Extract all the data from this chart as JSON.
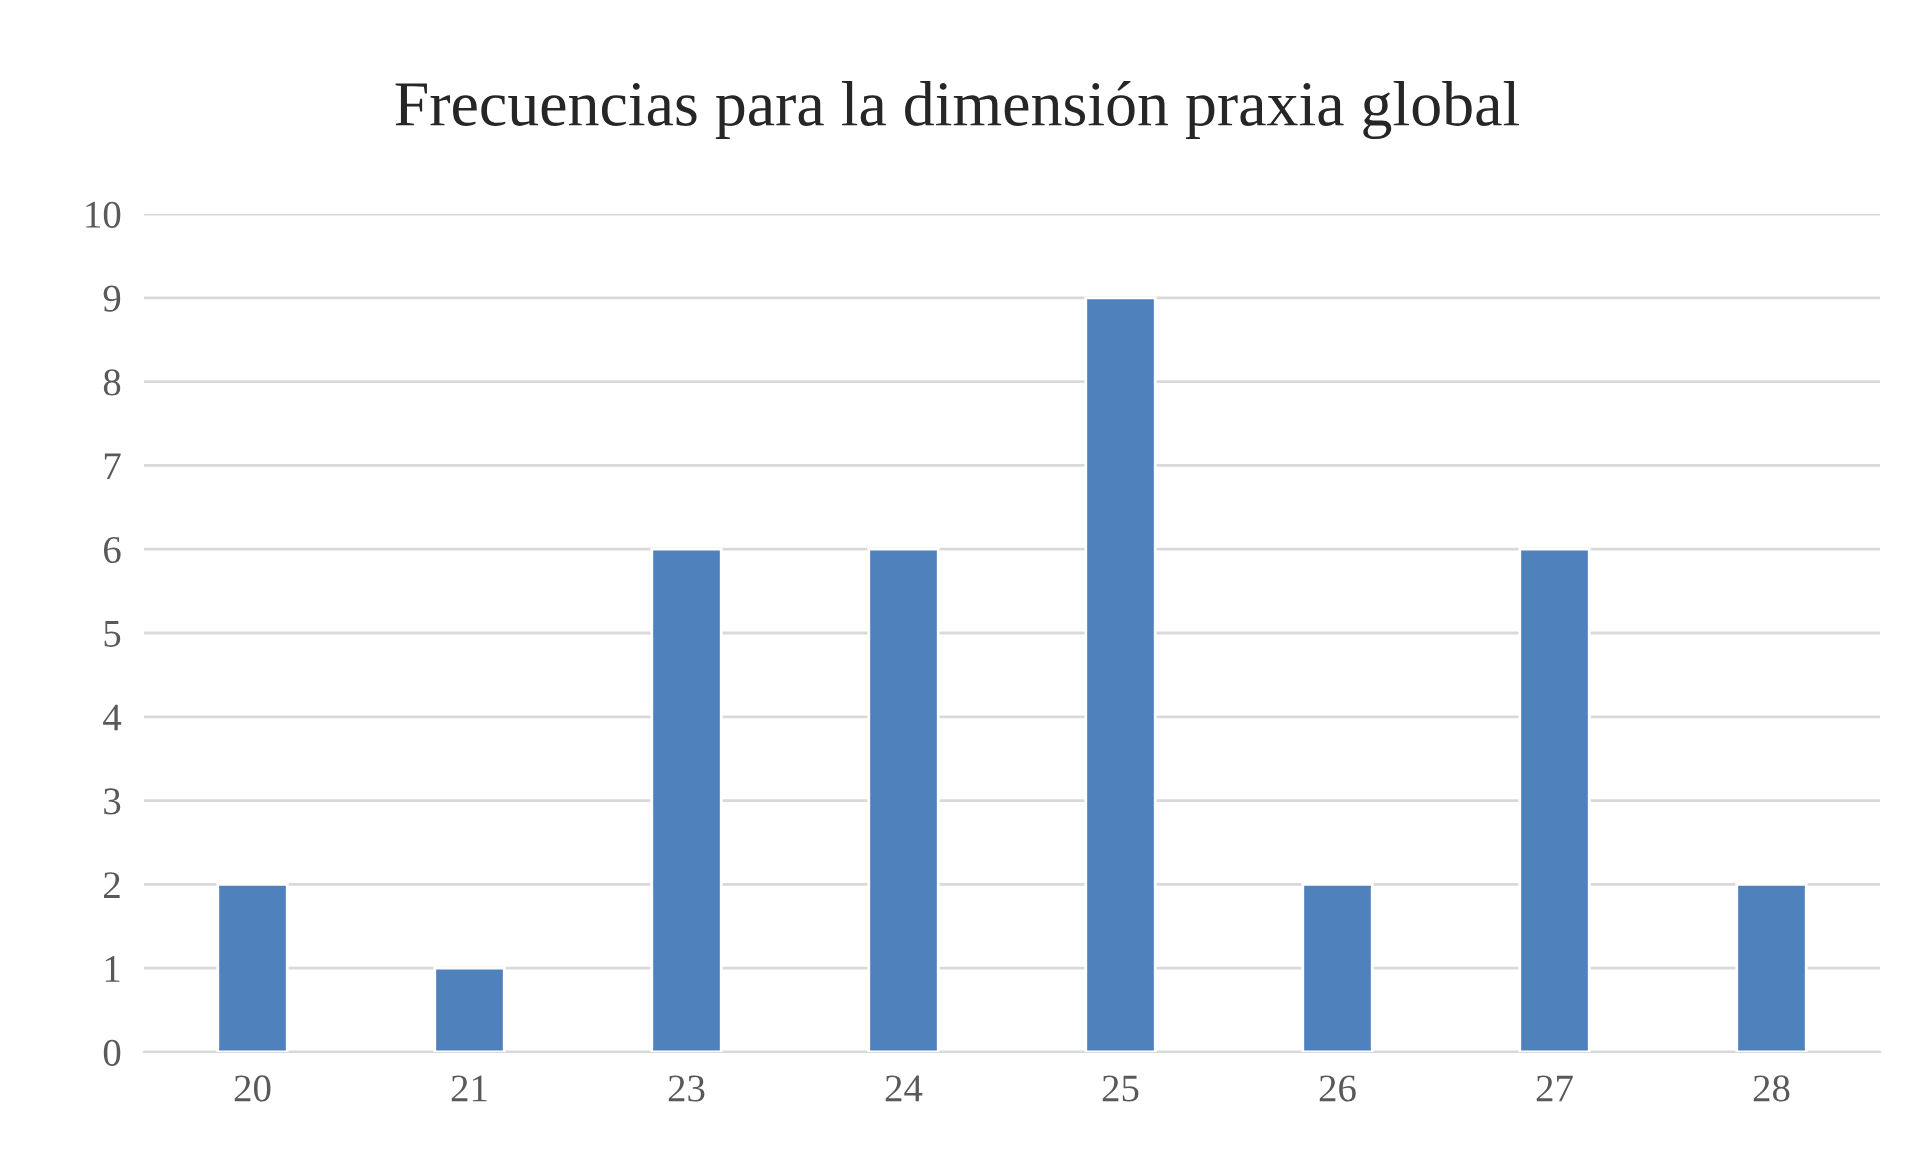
{
  "chart_data": {
    "type": "bar",
    "title": "Frecuencias para la dimensión praxia global",
    "categories": [
      "20",
      "21",
      "23",
      "24",
      "25",
      "26",
      "27",
      "28"
    ],
    "values": [
      2,
      1,
      6,
      6,
      9,
      2,
      6,
      2
    ],
    "color": "#4f81bd",
    "ylim": [
      0,
      10
    ],
    "yticks": [
      0,
      1,
      2,
      3,
      4,
      5,
      6,
      7,
      8,
      9,
      10
    ],
    "grid": "y",
    "legend": false
  }
}
